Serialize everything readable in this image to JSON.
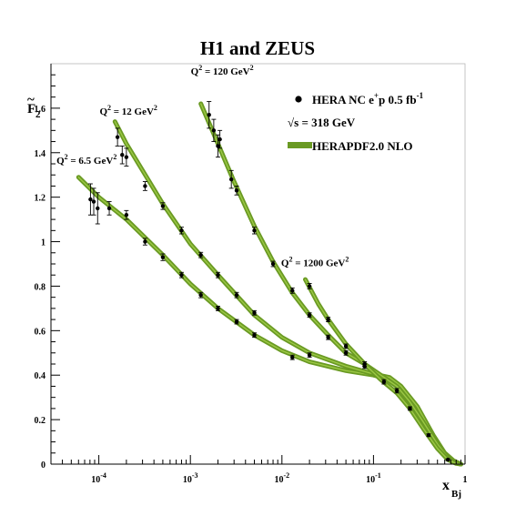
{
  "chart_data": {
    "type": "scatter",
    "title": "H1 and ZEUS",
    "xlabel": "x",
    "xlabel_sub": "Bj",
    "ylabel": "F",
    "ylabel_sub": "2",
    "ylabel_accent": "~",
    "x_scale": "log",
    "xlim": [
      3e-05,
      1.0
    ],
    "ylim": [
      0,
      1.8
    ],
    "x_ticks": [
      {
        "value": 0.0001,
        "base": "10",
        "exp": "-4"
      },
      {
        "value": 0.001,
        "base": "10",
        "exp": "-3"
      },
      {
        "value": 0.01,
        "base": "10",
        "exp": "-2"
      },
      {
        "value": 0.1,
        "base": "10",
        "exp": "-1"
      },
      {
        "value": 1,
        "label": "1"
      }
    ],
    "y_ticks": [
      "0",
      "0.2",
      "0.4",
      "0.6",
      "0.8",
      "1",
      "1.2",
      "1.4",
      "1.6"
    ],
    "grid": false,
    "legend": {
      "placement": "top-right",
      "entries": [
        {
          "type": "marker",
          "pre": "HERA NC e",
          "sup": "+",
          "post": "p 0.5 fb",
          "sup2": "-1"
        },
        {
          "type": "text",
          "text": "√s = 318 GeV"
        },
        {
          "type": "band",
          "text": "HERAPDF2.0 NLO"
        }
      ]
    },
    "annotations": [
      {
        "pre": "Q",
        "sup": "2",
        "post": " = 6.5 GeV",
        "sup2": "2",
        "at": [
          3.45e-05,
          1.35
        ]
      },
      {
        "pre": "Q",
        "sup": "2",
        "post": " = 12 GeV",
        "sup2": "2",
        "at": [
          0.000102,
          1.57
        ]
      },
      {
        "pre": "Q",
        "sup": "2",
        "post": " = 120 GeV",
        "sup2": "2",
        "at": [
          0.00101,
          1.75
        ]
      },
      {
        "pre": "Q",
        "sup": "2",
        "post": " = 1200 GeV",
        "sup2": "2",
        "at": [
          0.0098,
          0.89
        ]
      }
    ],
    "colors": {
      "band": "#6a9a23",
      "band_light": "#9cc845",
      "points": "#000000"
    },
    "series": [
      {
        "name": "Q2 = 6.5 GeV2",
        "points": [
          {
            "x": 8.1e-05,
            "y": 1.19,
            "err": 0.07
          },
          {
            "x": 8.8e-05,
            "y": 1.18,
            "err": 0.06
          },
          {
            "x": 9.7e-05,
            "y": 1.15,
            "err": 0.07
          },
          {
            "x": 0.00013,
            "y": 1.15,
            "err": 0.03
          },
          {
            "x": 0.0002,
            "y": 1.12,
            "err": 0.02
          },
          {
            "x": 0.00032,
            "y": 1.0,
            "err": 0.015
          },
          {
            "x": 0.0005,
            "y": 0.93,
            "err": 0.015
          },
          {
            "x": 0.0008,
            "y": 0.85,
            "err": 0.012
          },
          {
            "x": 0.0013,
            "y": 0.76,
            "err": 0.012
          },
          {
            "x": 0.002,
            "y": 0.7,
            "err": 0.01
          },
          {
            "x": 0.0032,
            "y": 0.64,
            "err": 0.01
          },
          {
            "x": 0.005,
            "y": 0.58,
            "err": 0.01
          }
        ],
        "curve": [
          {
            "x": 6e-05,
            "y": 1.29
          },
          {
            "x": 0.0001,
            "y": 1.2
          },
          {
            "x": 0.0002,
            "y": 1.1
          },
          {
            "x": 0.0005,
            "y": 0.94
          },
          {
            "x": 0.001,
            "y": 0.81
          },
          {
            "x": 0.002,
            "y": 0.7
          },
          {
            "x": 0.005,
            "y": 0.58
          },
          {
            "x": 0.01,
            "y": 0.51
          },
          {
            "x": 0.02,
            "y": 0.46
          },
          {
            "x": 0.05,
            "y": 0.42
          },
          {
            "x": 0.1,
            "y": 0.4
          },
          {
            "x": 0.15,
            "y": 0.38
          },
          {
            "x": 0.2,
            "y": 0.33
          },
          {
            "x": 0.3,
            "y": 0.23
          },
          {
            "x": 0.45,
            "y": 0.1
          },
          {
            "x": 0.6,
            "y": 0.04
          },
          {
            "x": 0.75,
            "y": 0.01
          },
          {
            "x": 0.9,
            "y": 0.0
          }
        ]
      },
      {
        "name": "Q2 = 12 GeV2",
        "points": [
          {
            "x": 0.00016,
            "y": 1.47,
            "err": 0.04
          },
          {
            "x": 0.00018,
            "y": 1.39,
            "err": 0.04
          },
          {
            "x": 0.0002,
            "y": 1.38,
            "err": 0.04
          },
          {
            "x": 0.00032,
            "y": 1.25,
            "err": 0.02
          },
          {
            "x": 0.0005,
            "y": 1.16,
            "err": 0.015
          },
          {
            "x": 0.0008,
            "y": 1.05,
            "err": 0.015
          },
          {
            "x": 0.0013,
            "y": 0.94,
            "err": 0.012
          },
          {
            "x": 0.002,
            "y": 0.85,
            "err": 0.012
          },
          {
            "x": 0.0032,
            "y": 0.76,
            "err": 0.012
          },
          {
            "x": 0.005,
            "y": 0.68,
            "err": 0.01
          },
          {
            "x": 0.013,
            "y": 0.48,
            "err": 0.01
          },
          {
            "x": 0.02,
            "y": 0.49,
            "err": 0.01
          }
        ],
        "curve": [
          {
            "x": 0.00015,
            "y": 1.54
          },
          {
            "x": 0.0002,
            "y": 1.44
          },
          {
            "x": 0.0005,
            "y": 1.17
          },
          {
            "x": 0.001,
            "y": 0.99
          },
          {
            "x": 0.002,
            "y": 0.85
          },
          {
            "x": 0.005,
            "y": 0.67
          },
          {
            "x": 0.01,
            "y": 0.57
          },
          {
            "x": 0.02,
            "y": 0.5
          },
          {
            "x": 0.05,
            "y": 0.44
          },
          {
            "x": 0.1,
            "y": 0.405
          },
          {
            "x": 0.15,
            "y": 0.39
          },
          {
            "x": 0.2,
            "y": 0.35
          },
          {
            "x": 0.3,
            "y": 0.26
          },
          {
            "x": 0.45,
            "y": 0.13
          },
          {
            "x": 0.6,
            "y": 0.05
          },
          {
            "x": 0.75,
            "y": 0.015
          },
          {
            "x": 0.9,
            "y": 0.0
          }
        ]
      },
      {
        "name": "Q2 = 120 GeV2",
        "points": [
          {
            "x": 0.0016,
            "y": 1.57,
            "err": 0.06
          },
          {
            "x": 0.0018,
            "y": 1.5,
            "err": 0.05
          },
          {
            "x": 0.002,
            "y": 1.43,
            "err": 0.05
          },
          {
            "x": 0.0021,
            "y": 1.46,
            "err": 0.04
          },
          {
            "x": 0.0028,
            "y": 1.28,
            "err": 0.04
          },
          {
            "x": 0.0032,
            "y": 1.23,
            "err": 0.02
          },
          {
            "x": 0.005,
            "y": 1.05,
            "err": 0.015
          },
          {
            "x": 0.008,
            "y": 0.9,
            "err": 0.012
          },
          {
            "x": 0.013,
            "y": 0.78,
            "err": 0.012
          },
          {
            "x": 0.02,
            "y": 0.67,
            "err": 0.01
          },
          {
            "x": 0.032,
            "y": 0.57,
            "err": 0.01
          },
          {
            "x": 0.05,
            "y": 0.5,
            "err": 0.01
          },
          {
            "x": 0.08,
            "y": 0.44,
            "err": 0.01
          }
        ],
        "curve": [
          {
            "x": 0.0013,
            "y": 1.62
          },
          {
            "x": 0.002,
            "y": 1.44
          },
          {
            "x": 0.003,
            "y": 1.27
          },
          {
            "x": 0.005,
            "y": 1.07
          },
          {
            "x": 0.008,
            "y": 0.91
          },
          {
            "x": 0.013,
            "y": 0.77
          },
          {
            "x": 0.02,
            "y": 0.67
          },
          {
            "x": 0.032,
            "y": 0.58
          },
          {
            "x": 0.05,
            "y": 0.5
          },
          {
            "x": 0.08,
            "y": 0.45
          },
          {
            "x": 0.12,
            "y": 0.4
          },
          {
            "x": 0.18,
            "y": 0.35
          },
          {
            "x": 0.25,
            "y": 0.28
          },
          {
            "x": 0.35,
            "y": 0.19
          },
          {
            "x": 0.5,
            "y": 0.09
          },
          {
            "x": 0.65,
            "y": 0.03
          },
          {
            "x": 0.8,
            "y": 0.005
          },
          {
            "x": 0.9,
            "y": 0.0
          }
        ]
      },
      {
        "name": "Q2 = 1200 GeV2",
        "points": [
          {
            "x": 0.02,
            "y": 0.8,
            "err": 0.012
          },
          {
            "x": 0.032,
            "y": 0.65,
            "err": 0.01
          },
          {
            "x": 0.05,
            "y": 0.53,
            "err": 0.01
          },
          {
            "x": 0.08,
            "y": 0.45,
            "err": 0.01
          },
          {
            "x": 0.13,
            "y": 0.37,
            "err": 0.01
          },
          {
            "x": 0.18,
            "y": 0.33,
            "err": 0.01
          },
          {
            "x": 0.25,
            "y": 0.25,
            "err": 0.008
          },
          {
            "x": 0.4,
            "y": 0.13,
            "err": 0.006
          },
          {
            "x": 0.65,
            "y": 0.02,
            "err": 0.004
          }
        ],
        "curve": [
          {
            "x": 0.018,
            "y": 0.83
          },
          {
            "x": 0.025,
            "y": 0.72
          },
          {
            "x": 0.032,
            "y": 0.65
          },
          {
            "x": 0.05,
            "y": 0.54
          },
          {
            "x": 0.08,
            "y": 0.45
          },
          {
            "x": 0.12,
            "y": 0.38
          },
          {
            "x": 0.18,
            "y": 0.32
          },
          {
            "x": 0.25,
            "y": 0.25
          },
          {
            "x": 0.35,
            "y": 0.16
          },
          {
            "x": 0.5,
            "y": 0.07
          },
          {
            "x": 0.65,
            "y": 0.02
          },
          {
            "x": 0.8,
            "y": 0.003
          },
          {
            "x": 0.9,
            "y": 0.0
          }
        ]
      }
    ]
  }
}
